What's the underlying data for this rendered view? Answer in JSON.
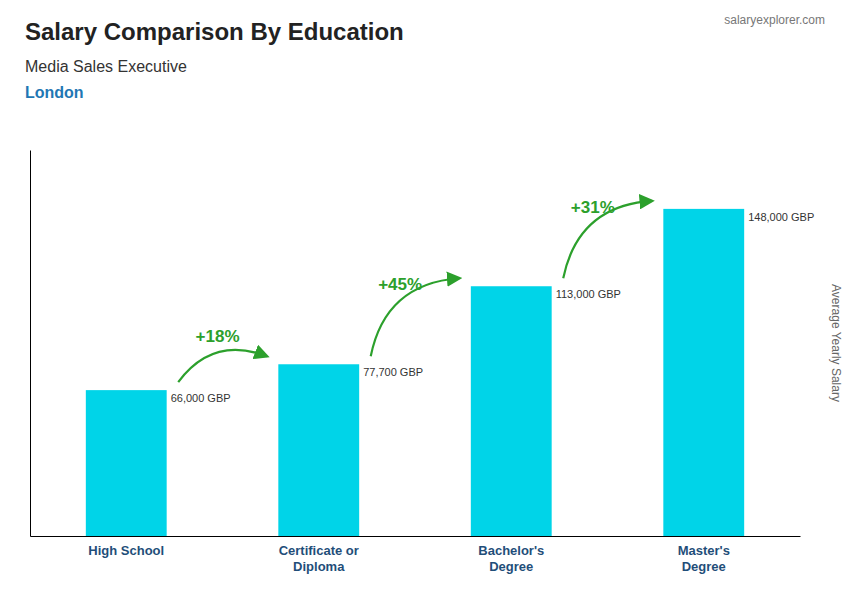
{
  "chart_data": {
    "type": "bar",
    "title": "Salary Comparison By Education",
    "subtitle": "Media Sales Executive",
    "y_label": "Average Yearly Salary",
    "annotations": [
      {
        "text": "London"
      },
      {
        "text": "salaryexplorer.com"
      },
      {
        "text": "+18%",
        "from": 0,
        "to": 1
      },
      {
        "text": "+45%",
        "from": 1,
        "to": 2
      },
      {
        "text": "+31%",
        "from": 2,
        "to": 3
      }
    ],
    "categories": [
      "High School",
      "Certificate or\nDiploma",
      "Bachelor's\nDegree",
      "Master's\nDegree"
    ],
    "values": [
      66000,
      77700,
      113000,
      148000
    ],
    "value_labels": [
      "66,000 GBP",
      "77,700 GBP",
      "113,000 GBP",
      "148,000 GBP"
    ],
    "data_labels": true,
    "color": "#00d4e8",
    "ylim": [
      0,
      174640
    ],
    "tick_labels": "x",
    "grid": false
  }
}
